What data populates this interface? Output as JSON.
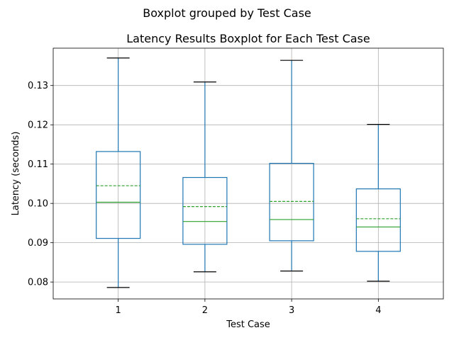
{
  "chart_data": {
    "type": "boxplot",
    "suptitle": "Boxplot grouped by Test Case",
    "title": "Latency Results Boxplot for Each Test Case",
    "xlabel": "Test Case",
    "ylabel": "Latency (seconds)",
    "ylim": [
      0.0757,
      0.1395
    ],
    "yticks": [
      0.08,
      0.09,
      0.1,
      0.11,
      0.12,
      0.13
    ],
    "ytick_labels": [
      "0.08",
      "0.09",
      "0.10",
      "0.11",
      "0.12",
      "0.13"
    ],
    "grid": true,
    "categories": [
      "1",
      "2",
      "3",
      "4"
    ],
    "boxes": [
      {
        "category": "1",
        "whisker_low": 0.0786,
        "q1": 0.0911,
        "median": 0.1003,
        "mean": 0.1045,
        "q3": 0.1132,
        "whisker_high": 0.137
      },
      {
        "category": "2",
        "whisker_low": 0.0826,
        "q1": 0.0896,
        "median": 0.0954,
        "mean": 0.0992,
        "q3": 0.1066,
        "whisker_high": 0.1309
      },
      {
        "category": "3",
        "whisker_low": 0.0828,
        "q1": 0.0905,
        "median": 0.0959,
        "mean": 0.1005,
        "q3": 0.1102,
        "whisker_high": 0.1364
      },
      {
        "category": "4",
        "whisker_low": 0.0802,
        "q1": 0.0878,
        "median": 0.094,
        "mean": 0.0961,
        "q3": 0.1037,
        "whisker_high": 0.1201
      }
    ],
    "colors": {
      "box": "#1f77b4",
      "median": "#2ca02c",
      "mean": "#2ca02c",
      "cap": "#000000"
    }
  }
}
